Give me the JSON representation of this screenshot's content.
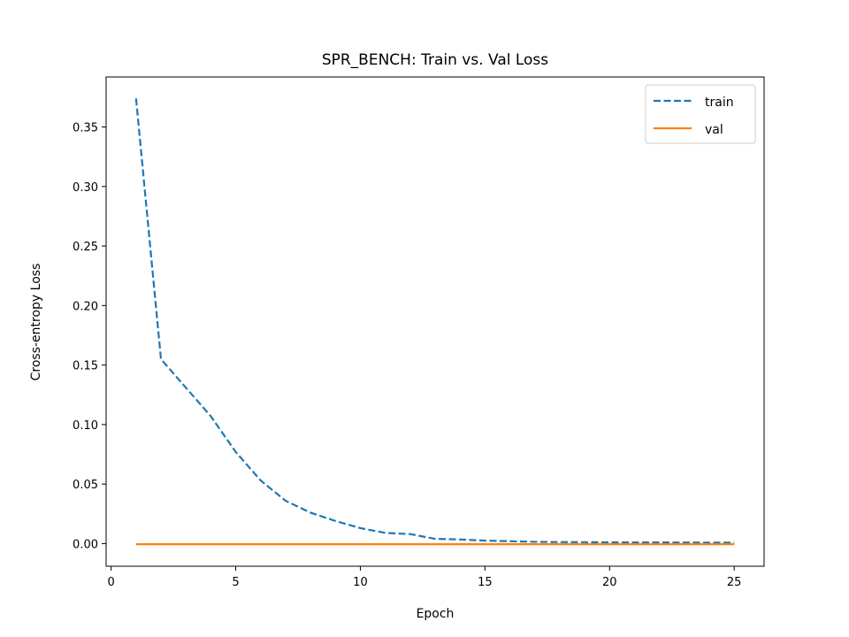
{
  "chart_data": {
    "type": "line",
    "title": "SPR_BENCH: Train vs. Val Loss",
    "xlabel": "Epoch",
    "ylabel": "Cross-entropy Loss",
    "xlim": [
      -0.2,
      26.2
    ],
    "ylim": [
      -0.019,
      0.392
    ],
    "xticks": [
      0,
      5,
      10,
      15,
      20,
      25
    ],
    "xtick_labels": [
      "0",
      "5",
      "10",
      "15",
      "20",
      "25"
    ],
    "yticks": [
      0.0,
      0.05,
      0.1,
      0.15,
      0.2,
      0.25,
      0.3,
      0.35
    ],
    "ytick_labels": [
      "0.00",
      "0.05",
      "0.10",
      "0.15",
      "0.20",
      "0.25",
      "0.30",
      "0.35"
    ],
    "grid": false,
    "legend": "top-right",
    "x": [
      1,
      2,
      3,
      4,
      5,
      6,
      7,
      8,
      9,
      10,
      11,
      12,
      13,
      14,
      15,
      16,
      17,
      18,
      19,
      20,
      21,
      22,
      23,
      24,
      25
    ],
    "series": [
      {
        "name": "train",
        "color": "#1f77b4",
        "linestyle": "dashed",
        "values": [
          0.374,
          0.155,
          0.131,
          0.107,
          0.077,
          0.053,
          0.036,
          0.026,
          0.019,
          0.013,
          0.009,
          0.008,
          0.004,
          0.0035,
          0.0025,
          0.002,
          0.0015,
          0.0013,
          0.0012,
          0.0011,
          0.001,
          0.001,
          0.0009,
          0.0008,
          0.0008
        ]
      },
      {
        "name": "val",
        "color": "#ff7f0e",
        "linestyle": "solid",
        "values": [
          -0.0005,
          -0.0005,
          -0.0005,
          -0.0005,
          -0.0005,
          -0.0005,
          -0.0005,
          -0.0005,
          -0.0005,
          -0.0005,
          -0.0005,
          -0.0005,
          -0.0005,
          -0.0005,
          -0.0005,
          -0.0005,
          -0.0005,
          -0.0005,
          -0.0005,
          -0.0005,
          -0.0005,
          -0.0005,
          -0.0005,
          -0.0005,
          -0.0005
        ]
      }
    ]
  }
}
